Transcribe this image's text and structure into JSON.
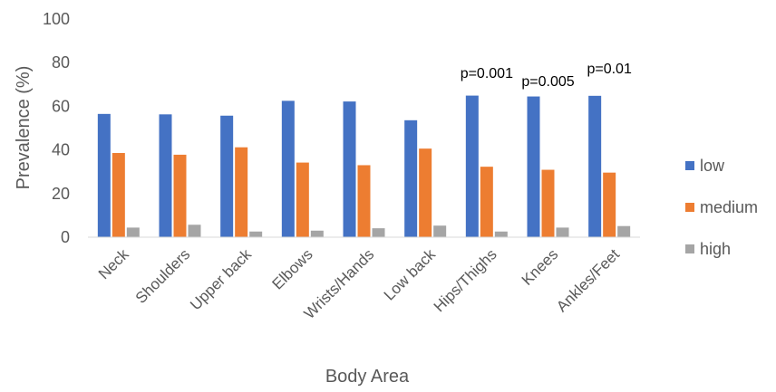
{
  "chart_data": {
    "type": "bar",
    "xlabel": "Body Area",
    "ylabel": "Prevalence (%)",
    "ylim": [
      0,
      100
    ],
    "yticks": [
      "0",
      "20",
      "40",
      "60",
      "80",
      "100"
    ],
    "grid": false,
    "legend_position": "right",
    "categories": [
      "Neck",
      "Shoulders",
      "Upper back",
      "Elbows",
      "Wrists/Hands",
      "Low back",
      "Hips/Thighs",
      "Knees",
      "Ankles/Feet"
    ],
    "series": [
      {
        "name": "low",
        "color": "#4472C4",
        "values": [
          56.5,
          56.3,
          55.7,
          62.5,
          62.2,
          53.6,
          64.9,
          64.5,
          64.8
        ]
      },
      {
        "name": "medium",
        "color": "#ED7D31",
        "values": [
          38.6,
          37.8,
          41.2,
          34.2,
          33.0,
          40.6,
          32.3,
          30.9,
          29.6
        ]
      },
      {
        "name": "high",
        "color": "#A5A5A5",
        "values": [
          4.4,
          5.7,
          2.6,
          3.0,
          4.1,
          5.3,
          2.6,
          4.4,
          5.1
        ]
      }
    ],
    "annotations": [
      {
        "category": "Hips/Thighs",
        "text": "p=0.001"
      },
      {
        "category": "Knees",
        "text": "p=0.005"
      },
      {
        "category": "Ankles/Feet",
        "text": "p=0.01"
      }
    ]
  }
}
